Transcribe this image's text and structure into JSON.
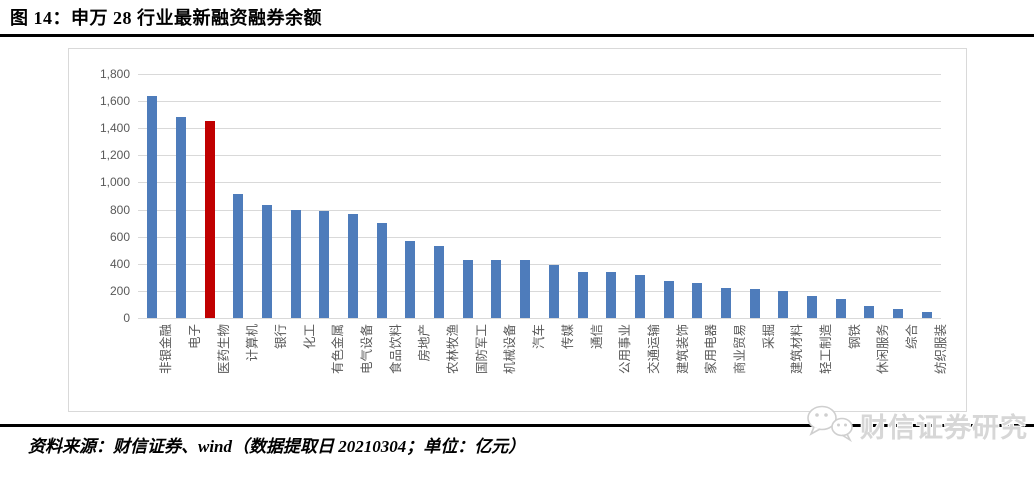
{
  "page": {
    "title": "图 14：申万 28 行业最新融资融券余额",
    "footer": "资料来源：财信证券、wind（数据提取日 20210304；单位：亿元）",
    "watermark": "财信证券研究"
  },
  "colors": {
    "bar_blue": "#4e7cbb",
    "bar_red": "#c00000",
    "gridline": "#d9d9d9",
    "axis_text": "#595959",
    "chart_border": "#d9d9d9",
    "rule_black": "#000000",
    "watermark_gray": "#d7d7d7"
  },
  "chart_data": {
    "type": "bar",
    "title": "申万 28 行业最新融资融券余额",
    "unit": "亿元",
    "categories": [
      "非银金融",
      "电子",
      "医药生物",
      "计算机",
      "银行",
      "化工",
      "有色金属",
      "电气设备",
      "食品饮料",
      "房地产",
      "农林牧渔",
      "国防军工",
      "机械设备",
      "汽车",
      "传媒",
      "通信",
      "公用事业",
      "交通运输",
      "建筑装饰",
      "家用电器",
      "商业贸易",
      "采掘",
      "建筑材料",
      "轻工制造",
      "钢铁",
      "休闲服务",
      "综合",
      "纺织服装"
    ],
    "values": [
      1640,
      1480,
      1455,
      915,
      835,
      800,
      790,
      765,
      700,
      565,
      530,
      430,
      425,
      425,
      390,
      340,
      338,
      318,
      276,
      260,
      218,
      215,
      200,
      165,
      140,
      85,
      65,
      45
    ],
    "highlight_index": 2,
    "bar_color": "#4e7cbb",
    "highlight_color": "#c00000",
    "ylim": [
      0,
      1800
    ],
    "ytick_step": 200,
    "ytick_labels": [
      "0",
      "200",
      "400",
      "600",
      "800",
      "1,000",
      "1,200",
      "1,400",
      "1,600",
      "1,800"
    ],
    "grid": true,
    "legend": false,
    "xlabel": "",
    "ylabel": ""
  }
}
